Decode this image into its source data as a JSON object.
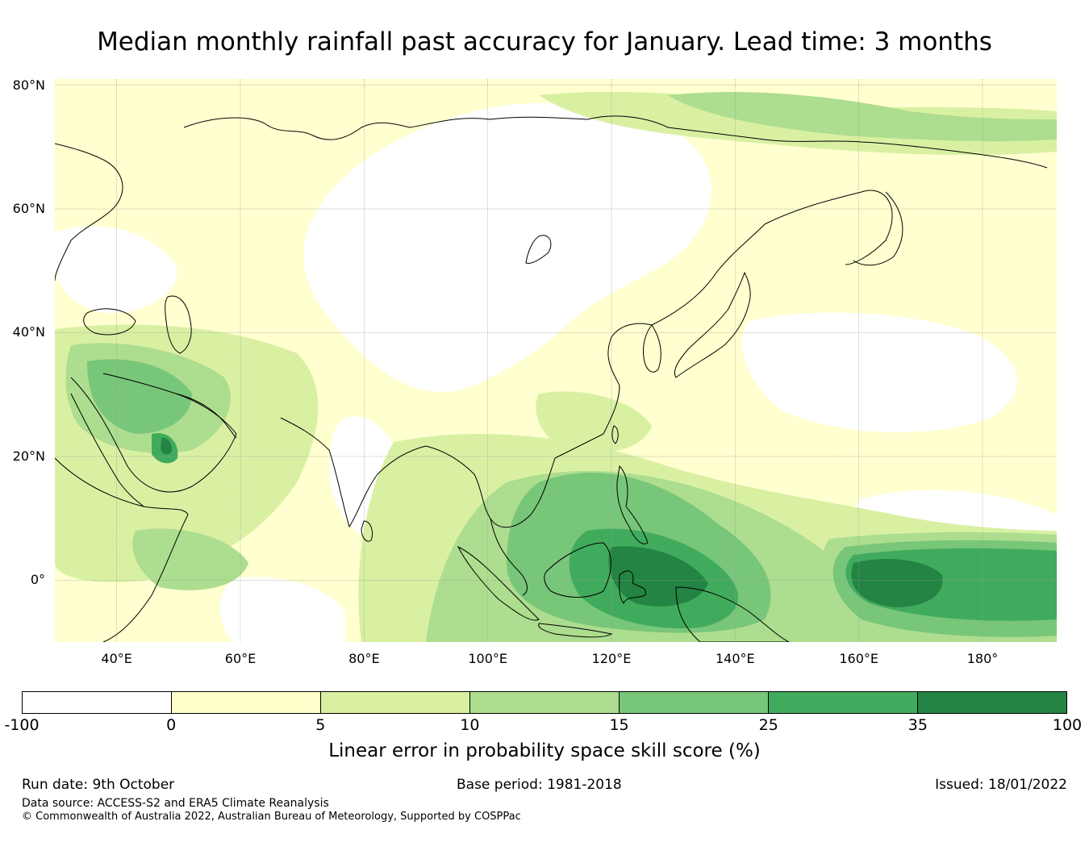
{
  "title": "Median monthly rainfall past accuracy for January. Lead time: 3 months",
  "map": {
    "extent": {
      "lon_min": 30,
      "lon_max": 192,
      "lat_min": -10,
      "lat_max": 81
    },
    "latitudes": [
      80,
      60,
      40,
      20,
      0
    ],
    "lat_labels": [
      "80°N",
      "60°N",
      "40°N",
      "20°N",
      "0°"
    ],
    "longitudes": [
      40,
      60,
      80,
      100,
      120,
      140,
      160,
      180
    ],
    "lon_labels": [
      "40°E",
      "60°E",
      "80°E",
      "100°E",
      "120°E",
      "140°E",
      "160°E",
      "180°"
    ],
    "gridline_color": "#999999",
    "coastline_color": "#000000"
  },
  "colorbar": {
    "ticks": [
      "-100",
      "0",
      "5",
      "10",
      "15",
      "25",
      "35",
      "100"
    ],
    "colors": [
      "#ffffff",
      "#ffffcc",
      "#d9f0a3",
      "#addd8e",
      "#78c679",
      "#41ab5d",
      "#238443"
    ],
    "label": "Linear error in probability space skill score (%)"
  },
  "footer": {
    "run_date": "Run date: 9th October",
    "base_period": "Base period: 1981-2018",
    "issued": "Issued: 18/01/2022",
    "data_source": "Data source: ACCESS-S2 and ERA5 Climate Reanalysis",
    "copyright": "© Commonwealth of Australia 2022, Australian Bureau of Meteorology, Supported by COSPPac"
  }
}
